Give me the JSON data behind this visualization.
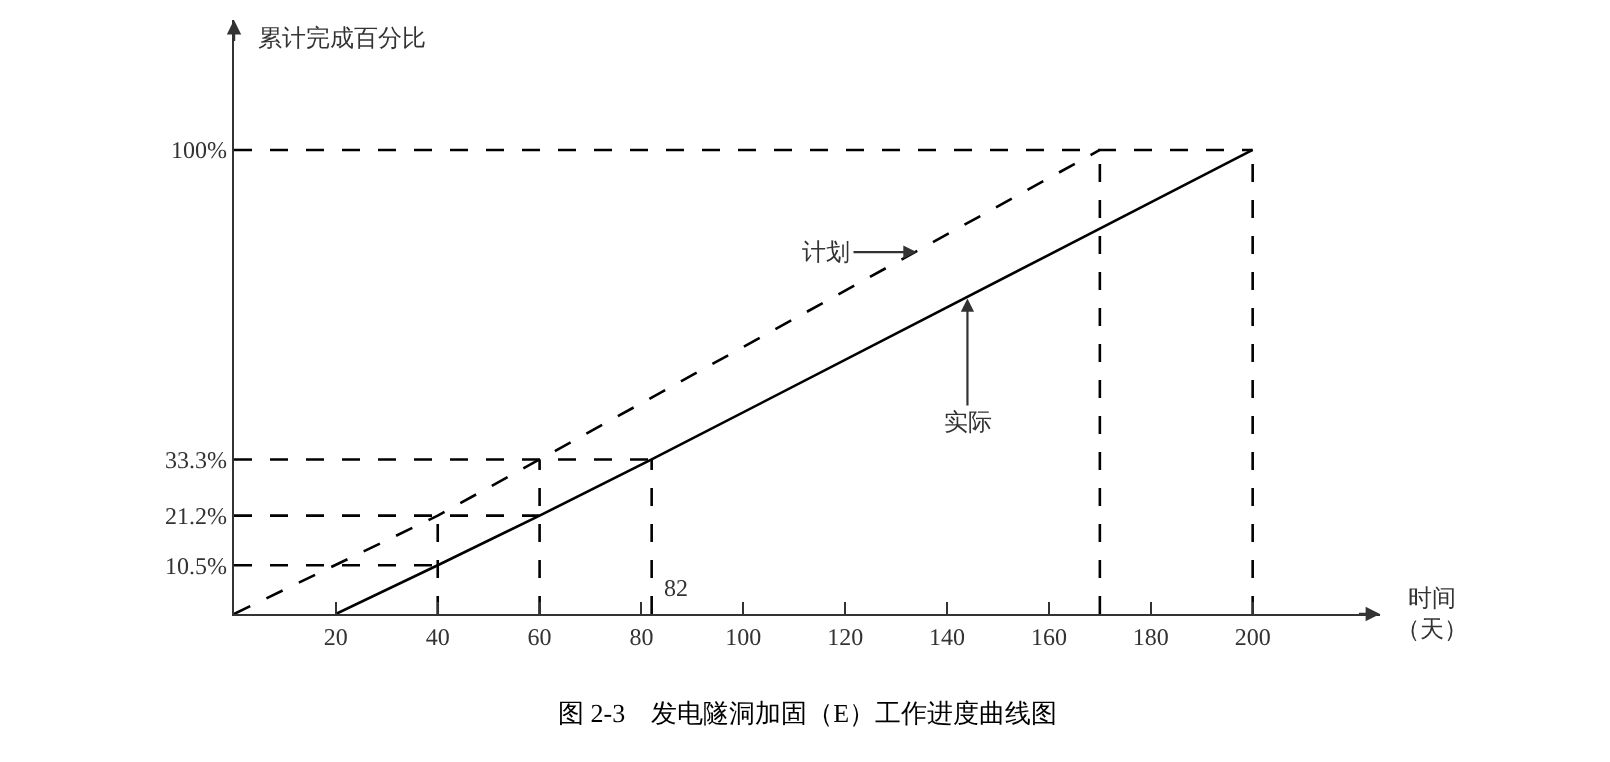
{
  "chart_data": {
    "type": "line",
    "title": "图 2-3　发电隧洞加固（E）工作进度曲线图",
    "xlabel": "时间（天）",
    "ylabel": "累计完成百分比",
    "xlim": [
      0,
      225
    ],
    "ylim": [
      0,
      128
    ],
    "xticks": [
      20,
      40,
      60,
      80,
      100,
      120,
      140,
      160,
      180,
      200
    ],
    "yticks": [
      {
        "value": 10.5,
        "label": "10.5%"
      },
      {
        "value": 21.2,
        "label": "21.2%"
      },
      {
        "value": 33.3,
        "label": "33.3%"
      },
      {
        "value": 100,
        "label": "100%"
      }
    ],
    "marker": "none",
    "series": [
      {
        "color": "#000000",
        "line_style": "dashed",
        "x": [
          0,
          40,
          60,
          170
        ],
        "values": [
          0,
          21.2,
          33.3,
          100
        ]
      },
      {
        "color": "#000000",
        "line_style": "solid",
        "x": [
          20,
          40,
          60,
          82,
          200
        ],
        "values": [
          0,
          10.5,
          21.2,
          33.3,
          100
        ]
      },
      {
        "color": "#000000",
        "line_style": "dashed",
        "x": [
          0,
          40
        ],
        "values": [
          10.5,
          10.5
        ]
      },
      {
        "color": "#000000",
        "line_style": "dashed",
        "x": [
          0,
          60
        ],
        "values": [
          21.2,
          21.2
        ]
      },
      {
        "color": "#000000",
        "line_style": "dashed",
        "x": [
          0,
          82
        ],
        "values": [
          33.3,
          33.3
        ]
      },
      {
        "color": "#000000",
        "line_style": "dashed",
        "x": [
          0,
          200
        ],
        "values": [
          100,
          100
        ]
      },
      {
        "color": "#000000",
        "line_style": "dashed",
        "x": [
          40,
          40
        ],
        "values": [
          0,
          21.2
        ]
      },
      {
        "color": "#000000",
        "line_style": "dashed",
        "x": [
          60,
          60
        ],
        "values": [
          0,
          33.3
        ]
      },
      {
        "color": "#000000",
        "line_style": "dashed",
        "x": [
          82,
          82
        ],
        "values": [
          0,
          33.3
        ]
      },
      {
        "color": "#000000",
        "line_style": "dashed",
        "x": [
          170,
          170
        ],
        "values": [
          0,
          100
        ]
      },
      {
        "color": "#000000",
        "line_style": "dashed",
        "x": [
          200,
          200
        ],
        "values": [
          0,
          100
        ]
      }
    ],
    "annotations": [
      {
        "text": "计划",
        "x": 134,
        "y": 78
      },
      {
        "text": "实际",
        "x": 144,
        "y": 68
      },
      {
        "text": "82",
        "x": 82,
        "y": 0
      }
    ]
  }
}
